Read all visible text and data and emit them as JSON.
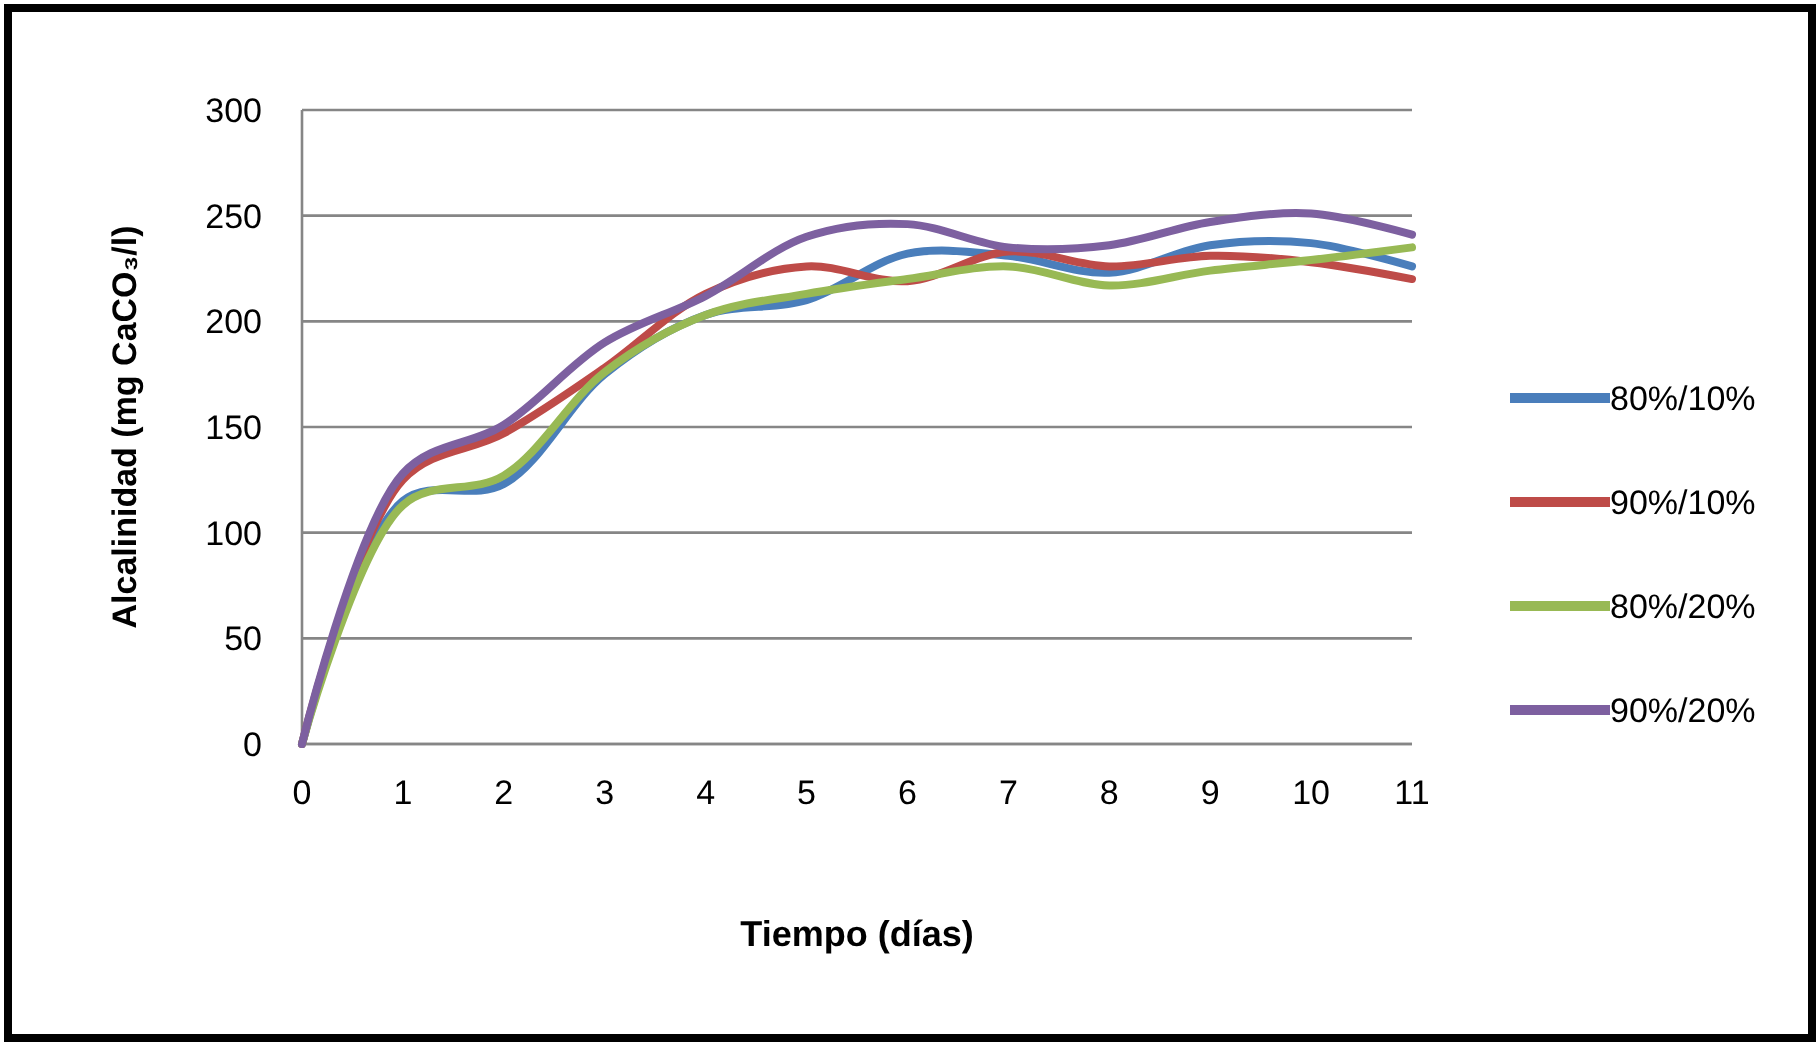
{
  "chart_data": {
    "type": "line",
    "xlabel": "Tiempo (días)",
    "ylabel": "Alcalinidad (mg CaCO₃/l)",
    "x": [
      0,
      1,
      2,
      3,
      4,
      5,
      6,
      7,
      8,
      9,
      10,
      11
    ],
    "series": [
      {
        "name": "80%/10%",
        "color": "#4a7ebb",
        "values": [
          0,
          115,
          123,
          175,
          203,
          210,
          232,
          231,
          223,
          236,
          237,
          226
        ]
      },
      {
        "name": "90%/10%",
        "color": "#be4b48",
        "values": [
          0,
          125,
          147,
          178,
          213,
          226,
          219,
          233,
          226,
          231,
          228,
          220
        ]
      },
      {
        "name": "80%/20%",
        "color": "#98b954",
        "values": [
          0,
          113,
          127,
          176,
          203,
          213,
          220,
          226,
          217,
          224,
          229,
          235
        ]
      },
      {
        "name": "90%/20%",
        "color": "#7d60a0",
        "values": [
          0,
          128,
          151,
          190,
          212,
          240,
          246,
          235,
          236,
          247,
          251,
          241
        ]
      }
    ],
    "xlim": [
      0,
      11
    ],
    "xticks": [
      0,
      1,
      2,
      3,
      4,
      5,
      6,
      7,
      8,
      9,
      10,
      11
    ],
    "ylim": [
      0,
      300
    ],
    "yticks": [
      0,
      50,
      100,
      150,
      200,
      250,
      300
    ],
    "grid": "y",
    "legend": "right",
    "marker": "none",
    "line_style": "solid"
  }
}
